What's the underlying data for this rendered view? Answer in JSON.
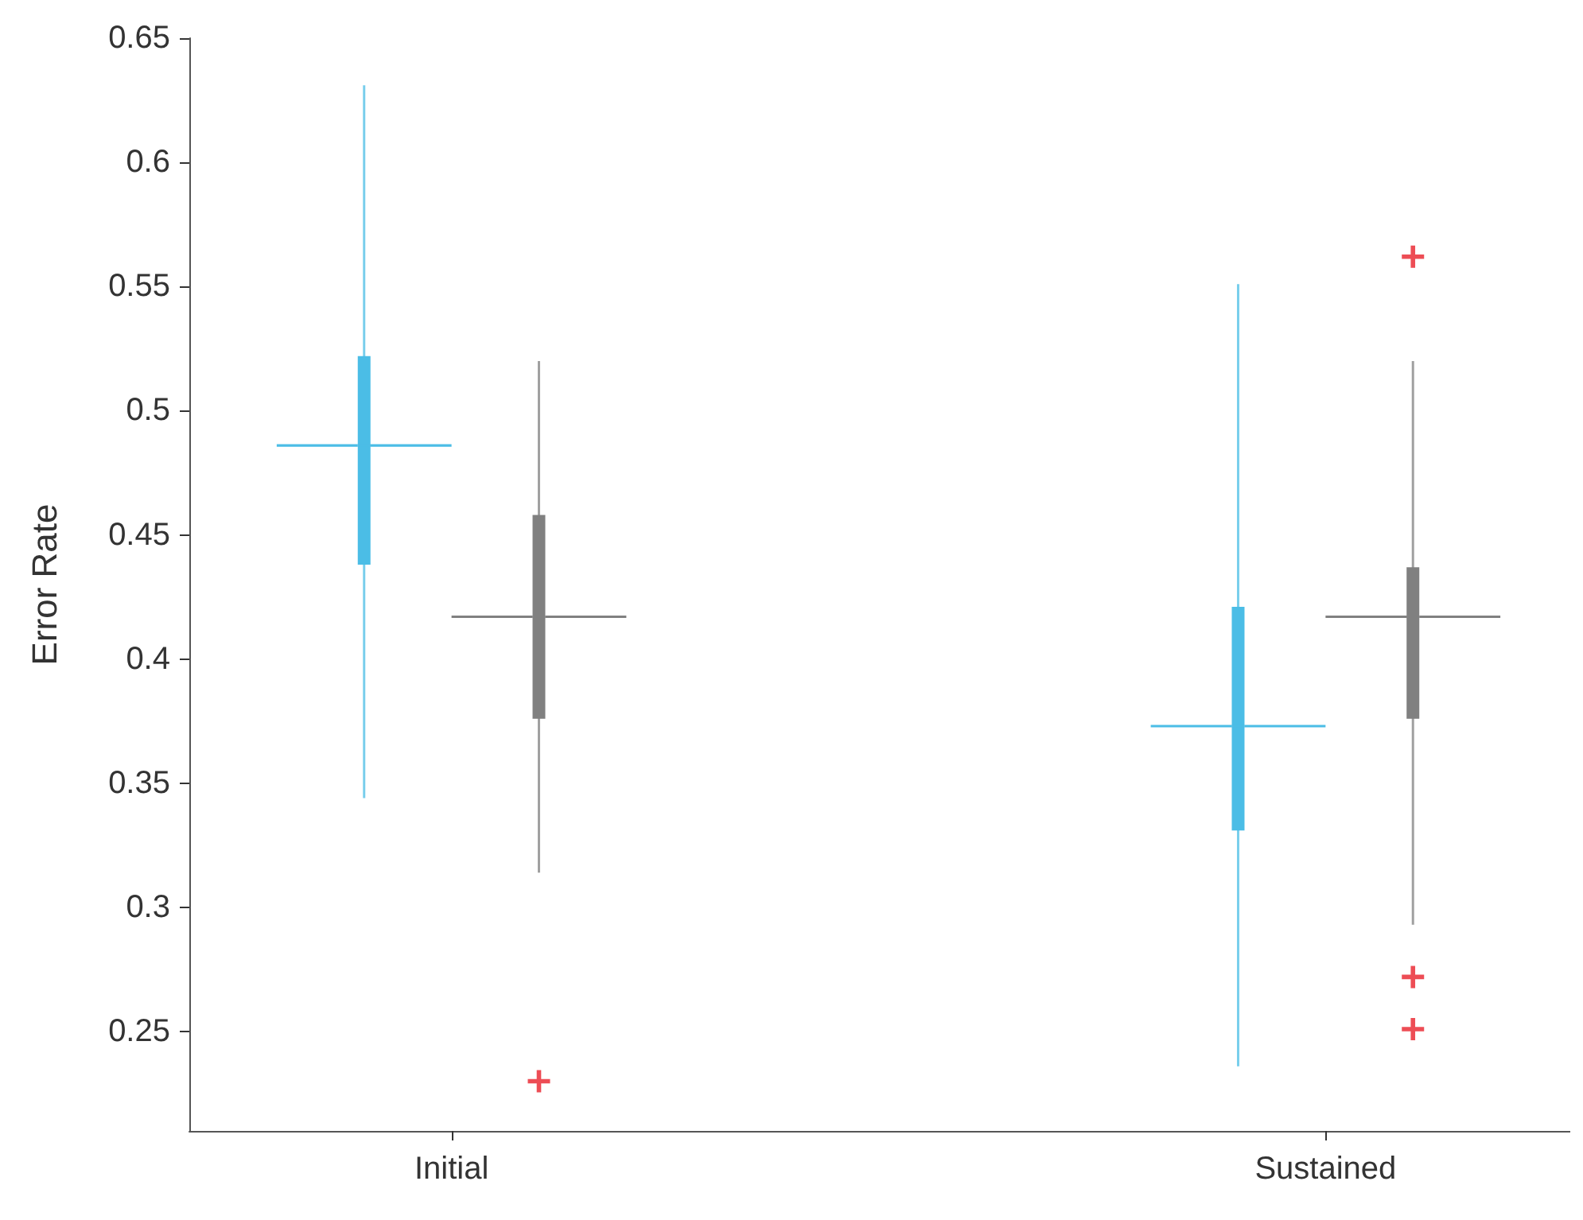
{
  "chart_data": {
    "type": "box",
    "ylabel": "Error Rate",
    "categories": [
      "Initial",
      "Sustained"
    ],
    "ylim": [
      0.21,
      0.65
    ],
    "yticks": [
      0.25,
      0.3,
      0.35,
      0.4,
      0.45,
      0.5,
      0.55,
      0.6,
      0.65
    ],
    "grid": false,
    "marker": "cross",
    "series": [
      {
        "color": "#4bbde6",
        "boxes": [
          {
            "low": 0.344,
            "q1": 0.438,
            "median": 0.486,
            "q3": 0.522,
            "high": 0.631
          },
          {
            "low": 0.236,
            "q1": 0.331,
            "median": 0.373,
            "q3": 0.421,
            "high": 0.551
          }
        ]
      },
      {
        "color": "#808080",
        "boxes": [
          {
            "low": 0.314,
            "q1": 0.376,
            "median": 0.417,
            "q3": 0.458,
            "high": 0.52,
            "outliers": [
              0.23
            ]
          },
          {
            "low": 0.293,
            "q1": 0.376,
            "median": 0.417,
            "q3": 0.437,
            "high": 0.52,
            "outliers": [
              0.562,
              0.272,
              0.251
            ]
          }
        ]
      }
    ]
  }
}
